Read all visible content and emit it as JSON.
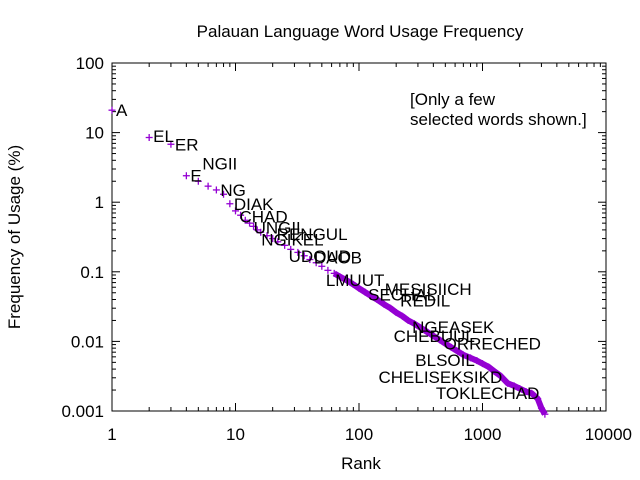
{
  "chart_data": {
    "type": "scatter",
    "title": "Palauan Language Word Usage Frequency",
    "xlabel": "Rank",
    "ylabel": "Frequency of Usage (%)",
    "xscale": "log",
    "yscale": "log",
    "xlim": [
      1,
      10000
    ],
    "ylim": [
      0.001,
      100
    ],
    "x_ticks": [
      1,
      10,
      100,
      1000,
      10000
    ],
    "x_tick_labels": [
      "1",
      "10",
      "100",
      "1000",
      "10000"
    ],
    "y_ticks": [
      0.001,
      0.01,
      0.1,
      1,
      10,
      100
    ],
    "y_tick_labels": [
      "0.001",
      "0.01",
      "0.1",
      "1",
      "10",
      "100"
    ],
    "grid": false,
    "series_color": "#9400d3",
    "marker": "plus",
    "annotation": [
      "[Only a few",
      "selected words shown.]"
    ],
    "points": {
      "x": [
        1,
        2,
        3,
        4,
        5,
        6,
        7,
        8,
        9,
        10,
        11,
        12,
        13,
        14,
        15,
        16,
        18,
        20,
        22,
        25,
        28,
        32,
        36,
        40,
        45,
        50,
        56,
        63,
        70,
        80,
        90,
        100,
        112,
        125,
        140,
        160,
        180,
        200,
        225,
        250,
        280,
        320,
        360,
        400,
        450,
        500,
        560,
        630,
        700,
        800,
        900,
        1000,
        1120,
        1250,
        1400,
        1600,
        1800,
        2000,
        2250,
        2500,
        2800,
        3000,
        3200
      ],
      "y": [
        21,
        8.5,
        6.8,
        2.4,
        2.0,
        1.7,
        1.5,
        1.3,
        0.95,
        0.75,
        0.65,
        0.55,
        0.5,
        0.45,
        0.4,
        0.37,
        0.33,
        0.3,
        0.27,
        0.24,
        0.21,
        0.19,
        0.17,
        0.15,
        0.135,
        0.12,
        0.105,
        0.095,
        0.085,
        0.075,
        0.066,
        0.058,
        0.051,
        0.045,
        0.04,
        0.034,
        0.03,
        0.026,
        0.023,
        0.02,
        0.018,
        0.0155,
        0.0135,
        0.012,
        0.0105,
        0.0093,
        0.0082,
        0.0072,
        0.0064,
        0.0058,
        0.0053,
        0.0048,
        0.0043,
        0.0037,
        0.0032,
        0.0025,
        0.0023,
        0.0021,
        0.0019,
        0.0018,
        0.0015,
        0.0011,
        0.0009
      ]
    },
    "word_labels": [
      {
        "text": "A",
        "x": 1,
        "y": 21
      },
      {
        "text": "EL",
        "x": 2,
        "y": 9
      },
      {
        "text": "ER",
        "x": 3,
        "y": 6.8
      },
      {
        "text": "E",
        "x": 4,
        "y": 2.4
      },
      {
        "text": "NGII",
        "x": 5,
        "y": 3.6
      },
      {
        "text": "NG",
        "x": 7,
        "y": 1.5
      },
      {
        "text": "DIAK",
        "x": 9,
        "y": 0.95
      },
      {
        "text": "CHAD",
        "x": 10,
        "y": 0.62
      },
      {
        "text": "UNGIL",
        "x": 13,
        "y": 0.43
      },
      {
        "text": "RENGUL",
        "x": 20,
        "y": 0.35
      },
      {
        "text": "NGIKEL",
        "x": 15,
        "y": 0.29
      },
      {
        "text": "UDOUD",
        "x": 25,
        "y": 0.17
      },
      {
        "text": "DAOB",
        "x": 40,
        "y": 0.16
      },
      {
        "text": "LMUUT",
        "x": 50,
        "y": 0.076
      },
      {
        "text": "MESISIICH",
        "x": 150,
        "y": 0.057
      },
      {
        "text": "SECHAL",
        "x": 110,
        "y": 0.047
      },
      {
        "text": "REDIL",
        "x": 200,
        "y": 0.039
      },
      {
        "text": "NGEASEK",
        "x": 250,
        "y": 0.016
      },
      {
        "text": "CHEBUUL",
        "x": 900,
        "y": 0.012
      },
      {
        "text": "ORRECHED",
        "x": 450,
        "y": 0.0093
      },
      {
        "text": "BLSOIL",
        "x": 900,
        "y": 0.0054
      },
      {
        "text": "CHELISEKSIKD",
        "x": 1500,
        "y": 0.0031
      },
      {
        "text": "TOKLECHAD",
        "x": 3000,
        "y": 0.0018
      }
    ]
  }
}
